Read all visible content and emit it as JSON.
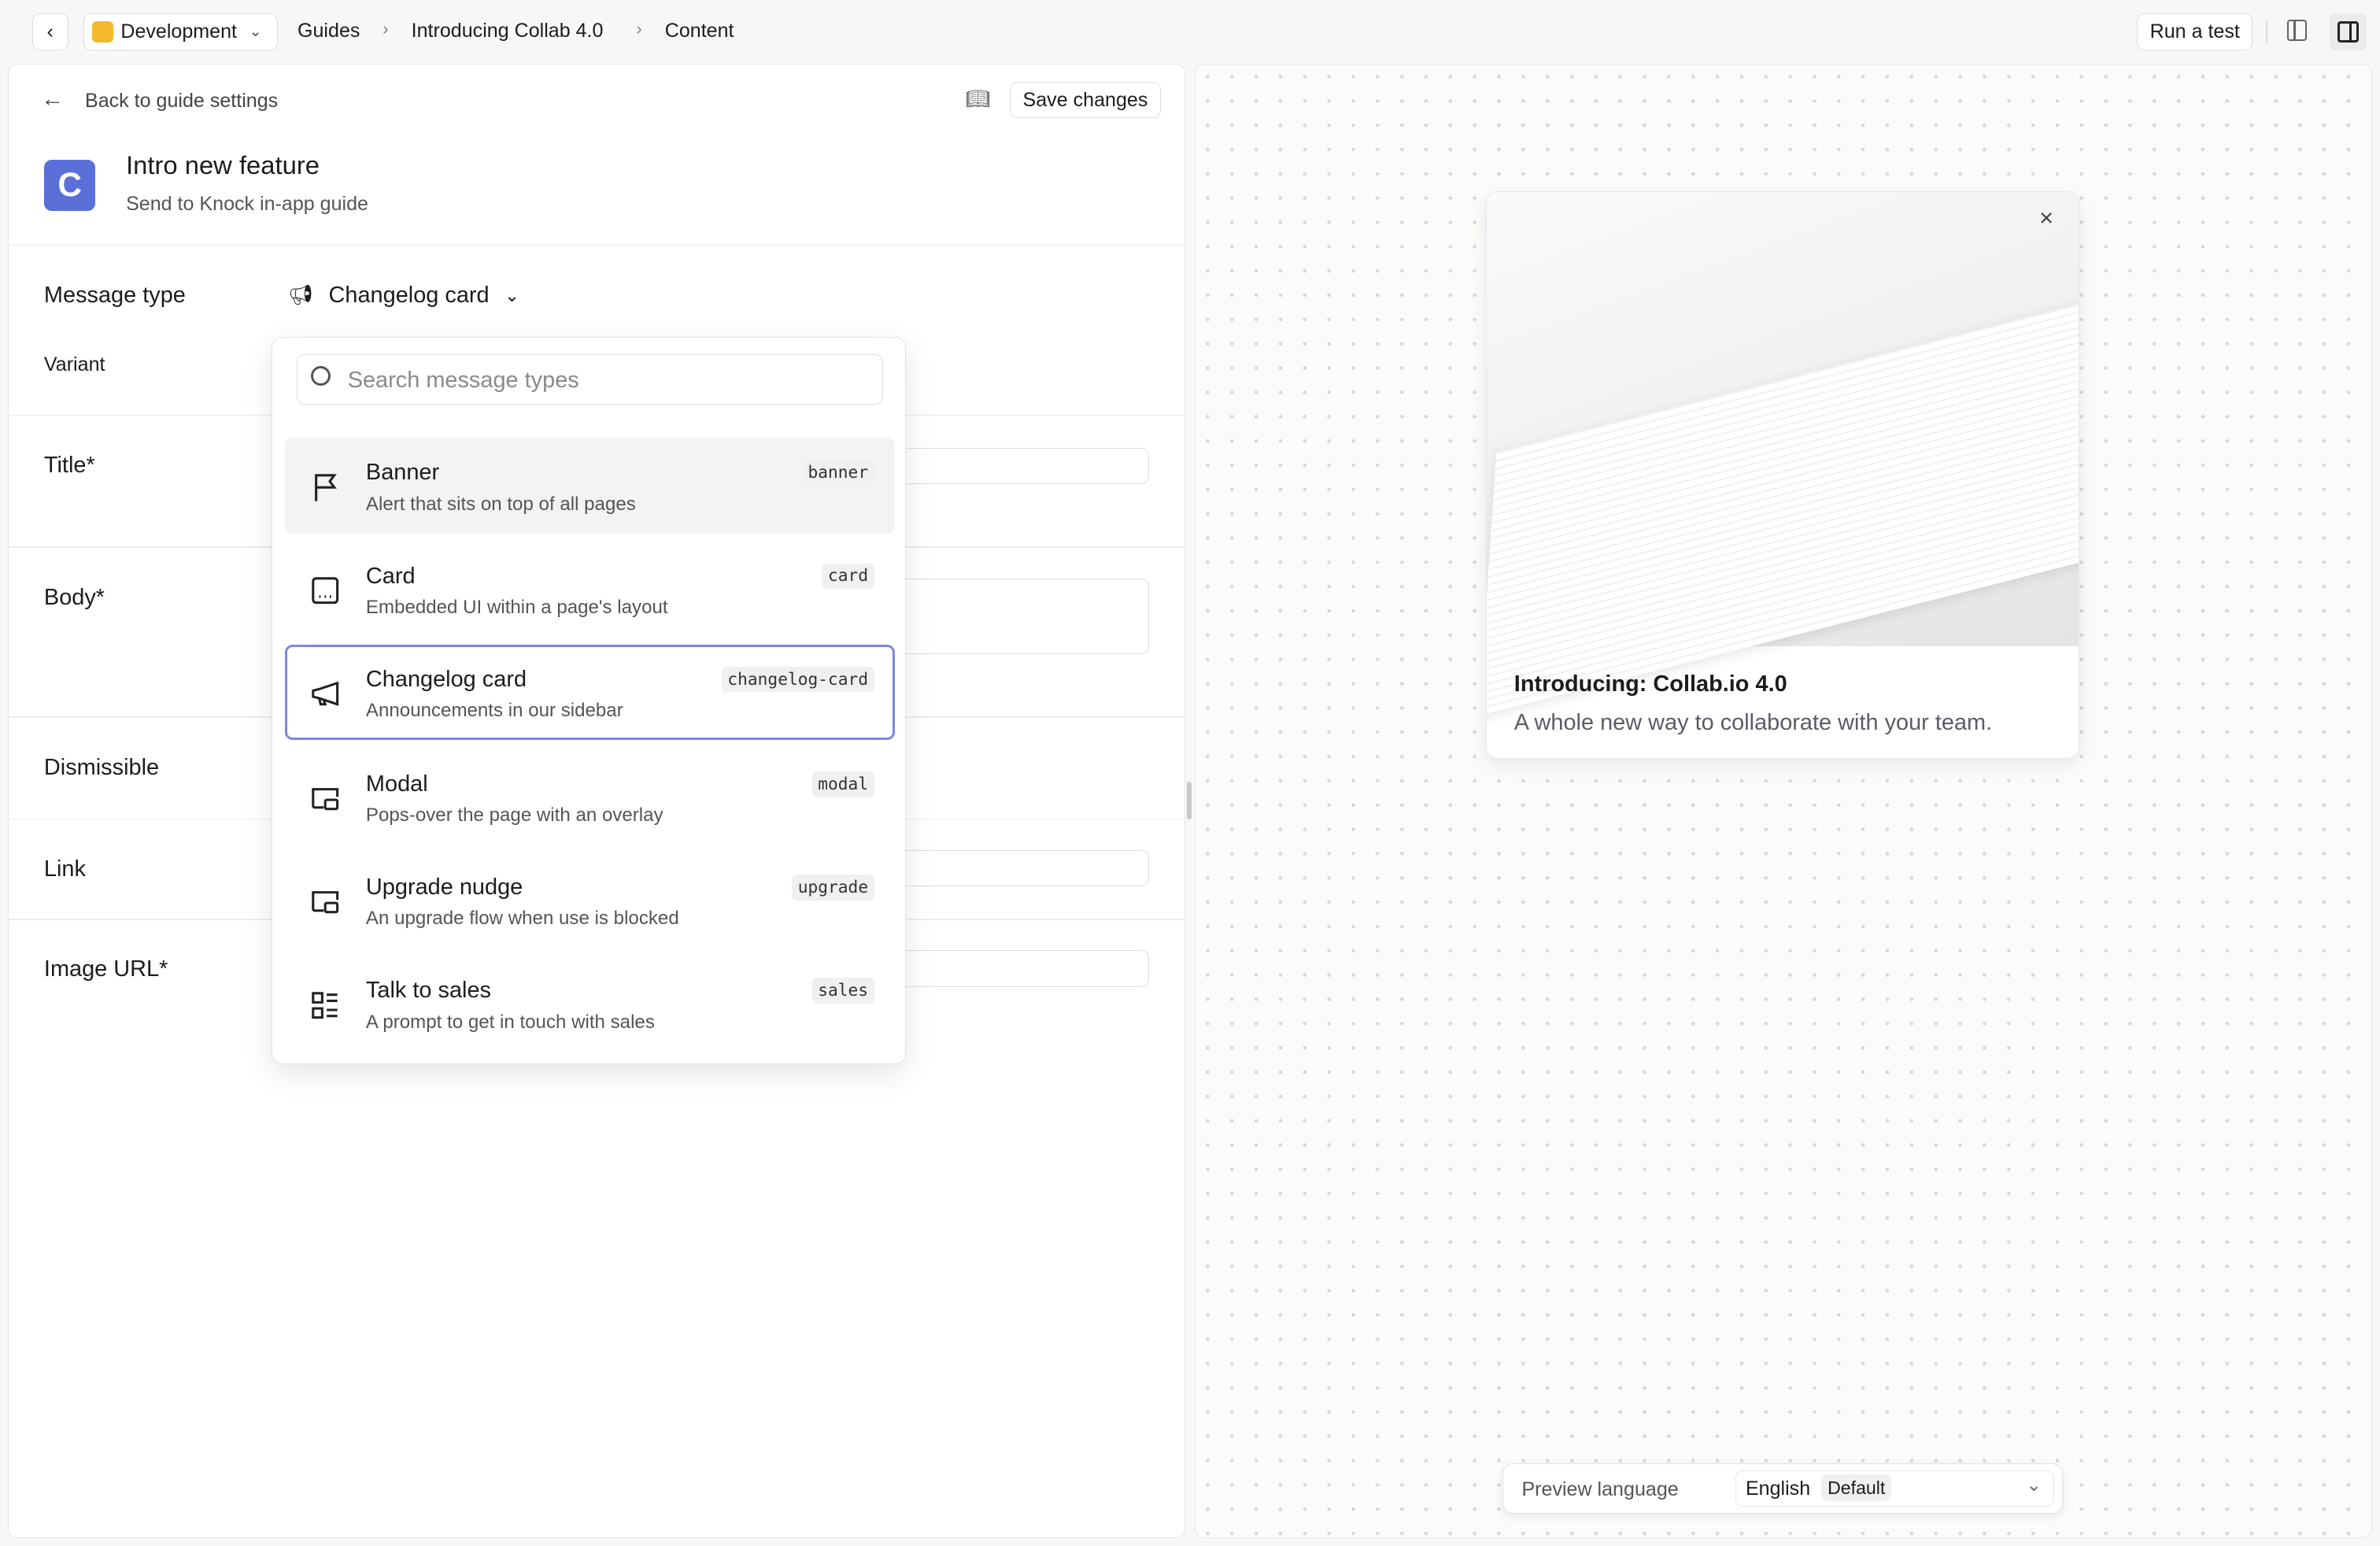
{
  "topbar": {
    "environment": "Development",
    "breadcrumbs": [
      "Guides",
      "Introducing Collab 4.0",
      "Content"
    ],
    "run_test": "Run a test"
  },
  "editor": {
    "back_link": "Back to guide settings",
    "save": "Save changes",
    "guide": {
      "logo_letter": "C",
      "title": "Intro new feature",
      "subtitle": "Send to Knock in-app guide"
    },
    "fields": {
      "message_type": "Message type",
      "message_type_value": "Changelog card",
      "variant": "Variant",
      "title": "Title*",
      "body": "Body*",
      "dismissible": "Dismissible",
      "link": "Link",
      "image_url": "Image URL*"
    }
  },
  "dropdown": {
    "search_placeholder": "Search message types",
    "items": [
      {
        "name": "Banner",
        "description": "Alert that sits on top of all pages",
        "key": "banner",
        "icon": "flag-icon"
      },
      {
        "name": "Card",
        "description": "Embedded UI within a page's layout",
        "key": "card",
        "icon": "card-icon"
      },
      {
        "name": "Changelog card",
        "description": "Announcements in our sidebar",
        "key": "changelog-card",
        "icon": "megaphone-icon",
        "selected": true
      },
      {
        "name": "Modal",
        "description": "Pops-over the page with an overlay",
        "key": "modal",
        "icon": "modal-icon"
      },
      {
        "name": "Upgrade nudge",
        "description": "An upgrade flow when use is blocked",
        "key": "upgrade",
        "icon": "modal-icon"
      },
      {
        "name": "Talk to sales",
        "description": "A prompt to get in touch with sales",
        "key": "sales",
        "icon": "list-icon"
      }
    ]
  },
  "preview": {
    "card_title": "Introducing: Collab.io 4.0",
    "card_body": "A whole new way to collaborate with your team.",
    "language_label": "Preview language",
    "language": "English",
    "language_badge": "Default"
  },
  "colors": {
    "accent": "#5a6fd8",
    "environment": "#f5b82e",
    "selected_border": "#7b86e6"
  }
}
